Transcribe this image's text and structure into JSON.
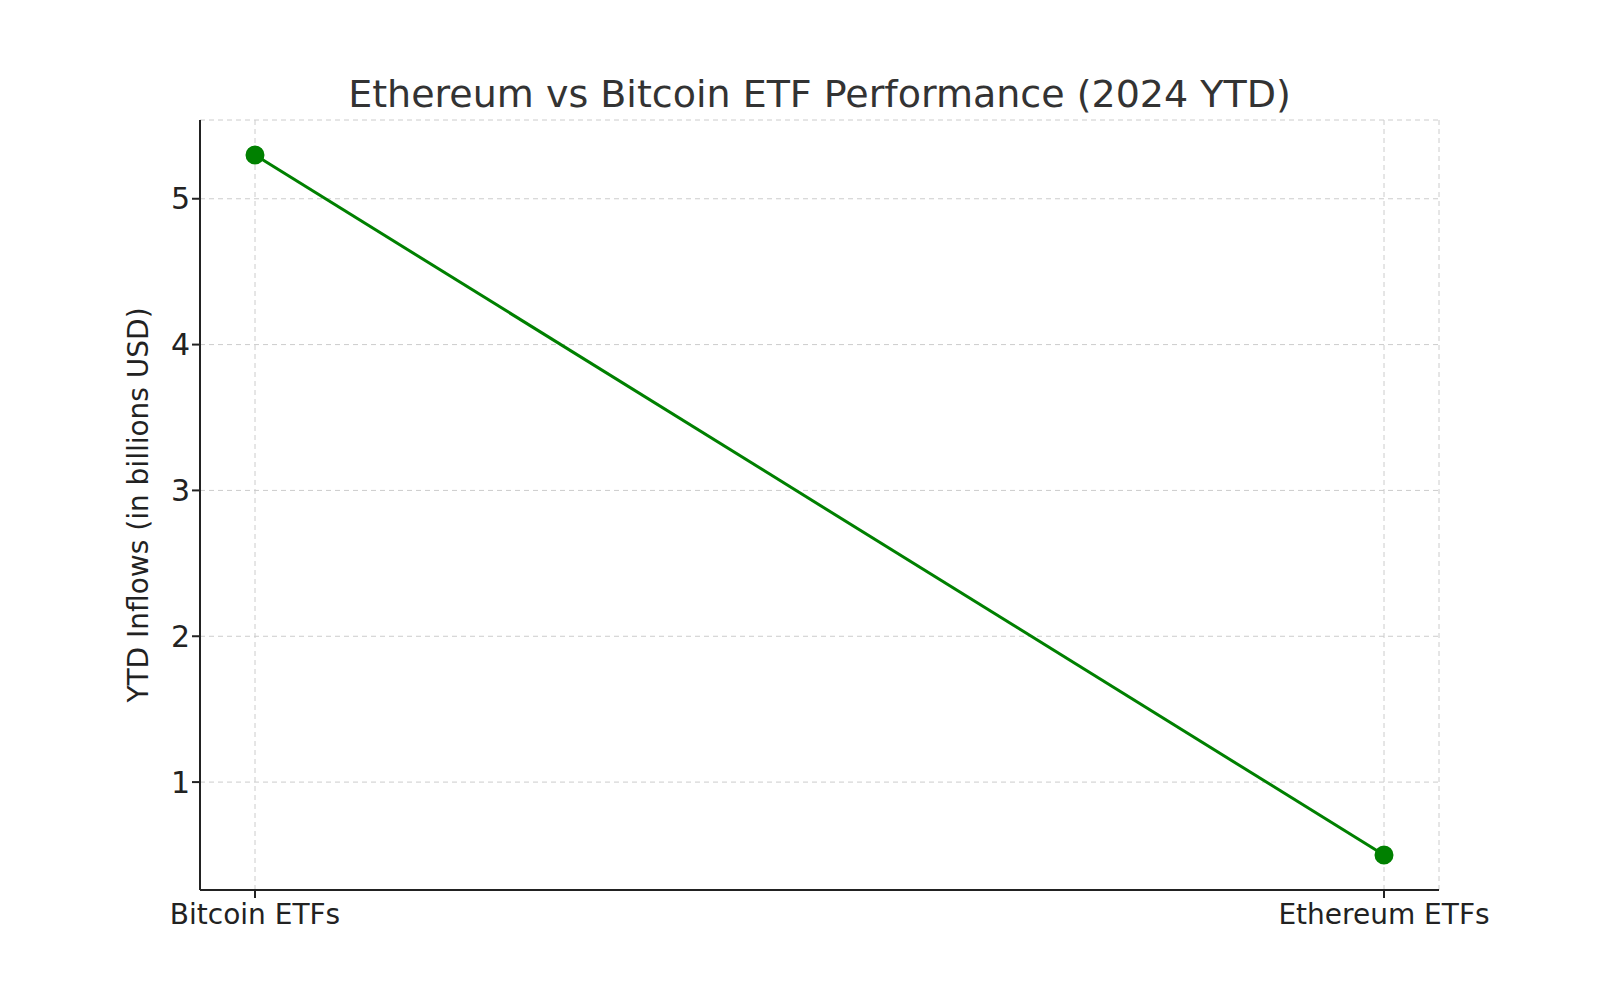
{
  "chart_data": {
    "type": "line",
    "title": "Ethereum vs Bitcoin ETF Performance (2024 YTD)",
    "y_label": "YTD Inflows (in billions USD)",
    "categories": [
      "Bitcoin ETFs",
      "Ethereum ETFs"
    ],
    "values": [
      5.3,
      0.5
    ],
    "color": "#008000",
    "ylim": [
      0.26,
      5.54
    ],
    "yticks": [
      1,
      2,
      3,
      4,
      5
    ],
    "grid": true,
    "marker": "o",
    "line_style": "solid"
  }
}
